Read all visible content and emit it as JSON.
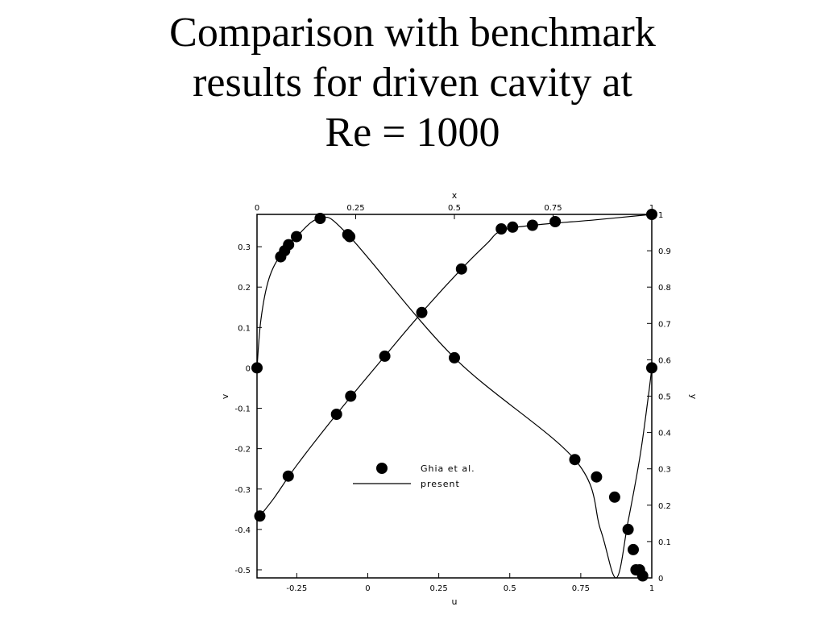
{
  "title": {
    "line1": "Comparison with benchmark",
    "line2": "results for driven cavity at",
    "line3": "Re = 1000"
  },
  "colors": {
    "ink": "#000000",
    "background": "#ffffff"
  },
  "chart_data": {
    "type": "scatter",
    "axes": {
      "bottom": {
        "label": "u",
        "range": [
          -0.39,
          1
        ],
        "ticks": [
          -0.25,
          0,
          0.25,
          0.5,
          0.75,
          1
        ],
        "tick_labels": [
          "-0.25",
          "0",
          "0.25",
          "0.5",
          "0.75",
          "1"
        ]
      },
      "top": {
        "label": "x",
        "range": [
          0,
          1
        ],
        "ticks": [
          0,
          0.25,
          0.5,
          0.75,
          1
        ],
        "tick_labels": [
          "0",
          "0.25",
          "0.5",
          "0.75",
          "1"
        ]
      },
      "left": {
        "label": "v",
        "range": [
          -0.52,
          0.38
        ],
        "ticks": [
          0.3,
          0.2,
          0.1,
          0,
          -0.1,
          -0.2,
          -0.3,
          -0.4,
          -0.5
        ],
        "tick_labels": [
          "0.3",
          "0.2",
          "0.1",
          "0",
          "-0.1",
          "-0.2",
          "-0.3",
          "-0.4",
          "-0.5"
        ]
      },
      "right": {
        "label": "y",
        "range": [
          0,
          1
        ],
        "ticks": [
          0,
          0.1,
          0.2,
          0.3,
          0.4,
          0.5,
          0.6,
          0.7,
          0.8,
          0.9,
          1
        ],
        "tick_labels": [
          "0",
          "0.1",
          "0.2",
          "0.3",
          "0.4",
          "0.5",
          "0.6",
          "0.7",
          "0.8",
          "0.9",
          "1"
        ]
      }
    },
    "legend": {
      "position": "center-left",
      "entries": [
        "Ghia et al.",
        "present"
      ]
    },
    "series": [
      {
        "name": "Ghia et al.",
        "profile": "u vs y",
        "marker": "filled-circle",
        "points": [
          {
            "u": 1.0,
            "y": 1.0
          },
          {
            "u": 0.66,
            "y": 0.98
          },
          {
            "u": 0.58,
            "y": 0.97
          },
          {
            "u": 0.51,
            "y": 0.965
          },
          {
            "u": 0.47,
            "y": 0.96
          },
          {
            "u": 0.33,
            "y": 0.85
          },
          {
            "u": 0.19,
            "y": 0.73
          },
          {
            "u": 0.06,
            "y": 0.61
          },
          {
            "u": -0.06,
            "y": 0.5
          },
          {
            "u": -0.11,
            "y": 0.45
          },
          {
            "u": -0.28,
            "y": 0.28
          },
          {
            "u": -0.38,
            "y": 0.17
          }
        ]
      },
      {
        "name": "present",
        "profile": "u vs y",
        "line": "solid",
        "points": [
          {
            "u": -0.39,
            "y": 0.16
          },
          {
            "u": -0.33,
            "y": 0.22
          },
          {
            "u": -0.25,
            "y": 0.31
          },
          {
            "u": -0.11,
            "y": 0.45
          },
          {
            "u": 0.06,
            "y": 0.61
          },
          {
            "u": 0.19,
            "y": 0.73
          },
          {
            "u": 0.33,
            "y": 0.85
          },
          {
            "u": 0.42,
            "y": 0.92
          },
          {
            "u": 0.47,
            "y": 0.955
          },
          {
            "u": 0.58,
            "y": 0.97
          },
          {
            "u": 0.8,
            "y": 0.985
          },
          {
            "u": 1.0,
            "y": 1.0
          }
        ]
      },
      {
        "name": "Ghia et al.",
        "profile": "x vs v",
        "marker": "filled-circle",
        "points": [
          {
            "x": 0.0,
            "v": 0.0
          },
          {
            "x": 0.06,
            "v": 0.275
          },
          {
            "x": 0.07,
            "v": 0.29
          },
          {
            "x": 0.08,
            "v": 0.305
          },
          {
            "x": 0.1,
            "v": 0.325
          },
          {
            "x": 0.16,
            "v": 0.37
          },
          {
            "x": 0.23,
            "v": 0.33
          },
          {
            "x": 0.235,
            "v": 0.325
          },
          {
            "x": 0.5,
            "v": 0.025
          },
          {
            "x": 0.805,
            "v": -0.227
          },
          {
            "x": 0.86,
            "v": -0.27
          },
          {
            "x": 0.906,
            "v": -0.32
          },
          {
            "x": 0.94,
            "v": -0.4
          },
          {
            "x": 0.953,
            "v": -0.45
          },
          {
            "x": 0.96,
            "v": -0.5
          },
          {
            "x": 0.969,
            "v": -0.5
          },
          {
            "x": 0.977,
            "v": -0.515
          },
          {
            "x": 1.0,
            "v": 0.0
          }
        ]
      },
      {
        "name": "present",
        "profile": "x vs v",
        "line": "solid",
        "points": [
          {
            "x": 0.0,
            "v": 0.0
          },
          {
            "x": 0.01,
            "v": 0.12
          },
          {
            "x": 0.03,
            "v": 0.22
          },
          {
            "x": 0.06,
            "v": 0.28
          },
          {
            "x": 0.1,
            "v": 0.325
          },
          {
            "x": 0.16,
            "v": 0.37
          },
          {
            "x": 0.23,
            "v": 0.33
          },
          {
            "x": 0.5,
            "v": 0.025
          },
          {
            "x": 0.805,
            "v": -0.227
          },
          {
            "x": 0.87,
            "v": -0.4
          },
          {
            "x": 0.91,
            "v": -0.52
          },
          {
            "x": 0.94,
            "v": -0.38
          },
          {
            "x": 0.97,
            "v": -0.22
          },
          {
            "x": 0.99,
            "v": -0.08
          },
          {
            "x": 1.0,
            "v": 0.0
          }
        ]
      }
    ]
  }
}
